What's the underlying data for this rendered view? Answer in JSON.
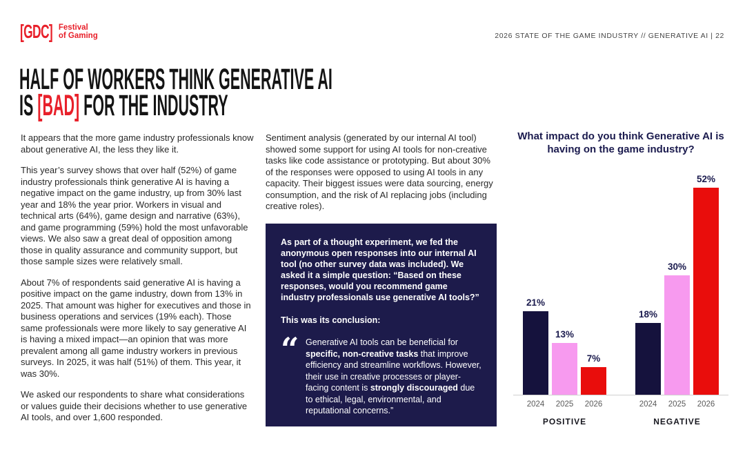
{
  "colors": {
    "brand_red": "#E8202A",
    "navy_box": "#1D1B4B",
    "chart_navy": "#15123D",
    "chart_pink": "#F79AEF",
    "chart_red": "#E90D0C"
  },
  "header": {
    "logo": {
      "mark": "[GDC]",
      "tagline_line1": "Festival",
      "tagline_line2": "of Gaming"
    },
    "meta": "2026 STATE OF THE GAME INDUSTRY // GENERATIVE AI | 22"
  },
  "headline": {
    "line1": "HALF OF WORKERS THINK GENERATIVE AI",
    "line2_pre": "IS ",
    "line2_red": "[BAD]",
    "line2_post": " FOR THE INDUSTRY"
  },
  "left_column": {
    "paragraphs": [
      "It appears that the more game industry professionals know about generative AI, the less they like it.",
      "This year’s survey shows that over half (52%) of game industry professionals think generative AI is having a negative impact on the game industry, up from 30% last year and 18% the year prior. Workers in visual and technical arts (64%), game design and narrative (63%), and game programming (59%) hold the most unfavorable views. We also saw a great deal of opposition among those in quality assurance and community support, but those sample sizes were relatively small.",
      "About 7% of respondents said generative AI is having a positive impact on the game industry, down from 13% in 2025. That amount was higher for executives and those in business operations and services (19% each). Those same professionals were more likely to say generative AI is having a mixed impact—an opinion that was more prevalent among all game industry workers in previous surveys. In 2025, it was half (51%) of them. This year, it was 30%.",
      "We asked our respondents to share what considerations or values guide their decisions whether to use generative AI tools, and over 1,600 responded."
    ]
  },
  "middle_column": {
    "paragraph": "Sentiment analysis (generated by our internal AI tool) showed some support for using AI tools for non-creative tasks like code assistance or prototyping. But about 30% of the responses were opposed to using AI tools in any capacity. Their biggest issues were data sourcing, energy consumption, and the risk of AI replacing jobs (including creative roles).",
    "callout": {
      "intro": "As part of a thought experiment, we fed the anonymous open responses into our internal AI tool (no other survey data was included). We asked it a simple question: “Based on these responses, would you recommend game industry professionals use generative AI tools?”",
      "conclusion_label": "This was its conclusion:",
      "quote_icon_glyph": "“",
      "quote_segments": [
        {
          "text": "Generative AI tools can be beneficial for ",
          "bold": false
        },
        {
          "text": "specific, non-creative tasks",
          "bold": true
        },
        {
          "text": " that improve efficiency and streamline workflows. However, their use in creative processes or player-facing content is ",
          "bold": false
        },
        {
          "text": "strongly discouraged",
          "bold": true
        },
        {
          "text": " due to ethical, legal, environmental, and reputational concerns.”",
          "bold": false
        }
      ]
    }
  },
  "chart": {
    "title_line1": "What impact do you think Generative AI is",
    "title_line2": "having on the game industry?"
  },
  "chart_data": {
    "type": "bar",
    "title": "What impact do you think Generative AI is having on the game industry?",
    "unit": "%",
    "ylim": [
      0,
      55
    ],
    "grid": false,
    "legend": "none",
    "groups": [
      {
        "label": "POSITIVE",
        "categories": [
          "2024",
          "2025",
          "2026"
        ],
        "values": [
          21,
          13,
          7
        ]
      },
      {
        "label": "NEGATIVE",
        "categories": [
          "2024",
          "2025",
          "2026"
        ],
        "values": [
          18,
          30,
          52
        ]
      }
    ],
    "colors": {
      "2024": "#15123D",
      "2025": "#F79AEF",
      "2026": "#E90D0C"
    }
  }
}
